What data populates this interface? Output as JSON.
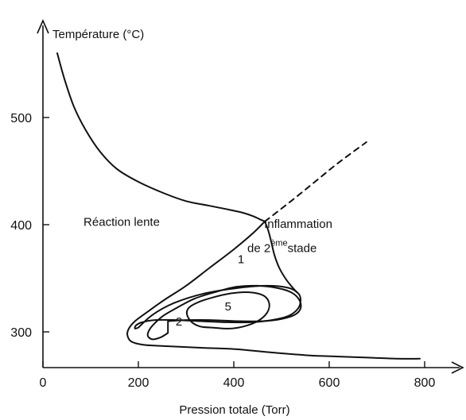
{
  "chart_data": {
    "type": "line",
    "xlabel": "Pression totale (Torr)",
    "ylabel": "Température (°C)",
    "xlim": [
      0,
      880
    ],
    "ylim": [
      263,
      565
    ],
    "x_ticks": [
      0,
      200,
      400,
      600,
      800
    ],
    "y_ticks": [
      300,
      400,
      500
    ],
    "x_tick_labels": [
      "0",
      "200",
      "400",
      "600",
      "800"
    ],
    "y_tick_labels": [
      "300",
      "400",
      "500"
    ],
    "grid": false,
    "series": [
      {
        "key": "upper_boundary",
        "style": "solid",
        "closed": false,
        "x": [
          30,
          45,
          65,
          90,
          120,
          155,
          200,
          250,
          300,
          345,
          390,
          420,
          440,
          455,
          465
        ],
        "y": [
          560,
          536,
          510,
          488,
          468,
          452,
          440,
          430,
          422,
          418,
          414,
          411,
          408,
          405,
          403
        ]
      },
      {
        "key": "right_boundary",
        "style": "solid",
        "closed": false,
        "x": [
          465,
          472,
          478,
          485,
          495,
          508,
          520,
          528,
          532
        ],
        "y": [
          403,
          395,
          385,
          372,
          360,
          350,
          343,
          339,
          337
        ]
      },
      {
        "key": "lower_loop_boundary",
        "style": "solid",
        "closed": false,
        "x": [
          465,
          440,
          400,
          350,
          300,
          255,
          220,
          193,
          180,
          177,
          185,
          210,
          245,
          290,
          340,
          400,
          450,
          500,
          560,
          620,
          680,
          740,
          790
        ],
        "y": [
          403,
          392,
          377,
          360,
          343,
          330,
          319,
          310,
          303,
          297,
          291,
          288,
          287,
          286,
          285,
          284,
          282,
          280,
          278,
          277,
          276,
          275,
          275
        ]
      },
      {
        "key": "region_1_loop",
        "style": "solid",
        "closed": true,
        "x": [
          200,
          230,
          275,
          340,
          410,
          470,
          515,
          535,
          540,
          535,
          515,
          480,
          435,
          385,
          330,
          280,
          235,
          208,
          195,
          193,
          200
        ],
        "y": [
          304,
          316,
          327,
          336,
          341,
          343,
          341,
          336,
          330,
          322,
          315,
          311,
          309,
          309,
          310,
          311,
          311,
          309,
          306,
          303,
          304
        ]
      },
      {
        "key": "region_2_loop",
        "style": "solid",
        "closed": true,
        "x": [
          262,
          300,
          350,
          410,
          460,
          500,
          528,
          540,
          537,
          520,
          490,
          450,
          405,
          360,
          318,
          283,
          252,
          232,
          222,
          220,
          230,
          247,
          262
        ],
        "y": [
          310,
          311,
          311,
          310,
          310,
          312,
          316,
          322,
          330,
          337,
          341,
          343,
          342,
          337,
          331,
          323,
          315,
          307,
          301,
          296,
          293,
          295,
          299
        ]
      },
      {
        "key": "region_5_loop",
        "style": "solid",
        "closed": true,
        "x": [
          355,
          390,
          420,
          450,
          470,
          474,
          462,
          432,
          395,
          355,
          322,
          305,
          302,
          312,
          330,
          355
        ],
        "y": [
          304,
          303,
          305,
          310,
          318,
          327,
          334,
          337,
          336,
          332,
          327,
          322,
          316,
          309,
          305,
          304
        ]
      },
      {
        "key": "extrapolation",
        "style": "dashed",
        "closed": false,
        "x": [
          465,
          520,
          570,
          620,
          678
        ],
        "y": [
          403,
          422,
          440,
          458,
          477
        ]
      }
    ],
    "region_labels": [
      {
        "text": "Réaction lente",
        "x": 165,
        "y": 402
      },
      {
        "text": "Inflammation",
        "x": 535,
        "y": 400
      },
      {
        "text": "1",
        "x": 415,
        "y": 367
      },
      {
        "text": "2",
        "x": 285,
        "y": 309
      },
      {
        "text": "5",
        "x": 388,
        "y": 323
      }
    ],
    "inflammation_line2": {
      "prefix": "de 2",
      "superscript": "ème",
      "suffix": "stade",
      "x": 530,
      "y": 378
    }
  }
}
